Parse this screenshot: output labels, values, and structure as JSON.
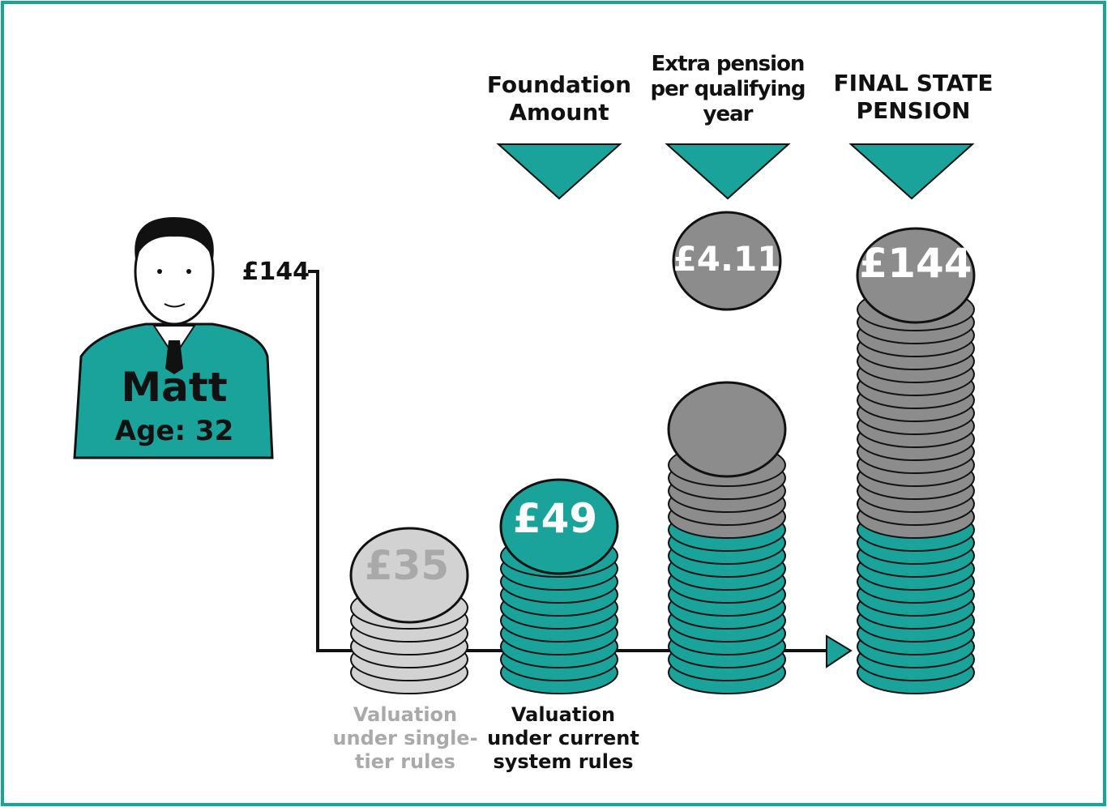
{
  "person": {
    "name": "Matt",
    "age": "Age: 32"
  },
  "axis_label": "£144",
  "headers": [
    "Foundation Amount",
    "Extra pension per qualifying year",
    "FINAL STATE PENSION"
  ],
  "stacks": [
    {
      "label": "£35",
      "caption": "Valuation under single-tier rules"
    },
    {
      "label": "£49",
      "caption": "Valuation under current system rules"
    },
    {
      "label": "£4.11"
    },
    {
      "label": "£144"
    }
  ]
}
